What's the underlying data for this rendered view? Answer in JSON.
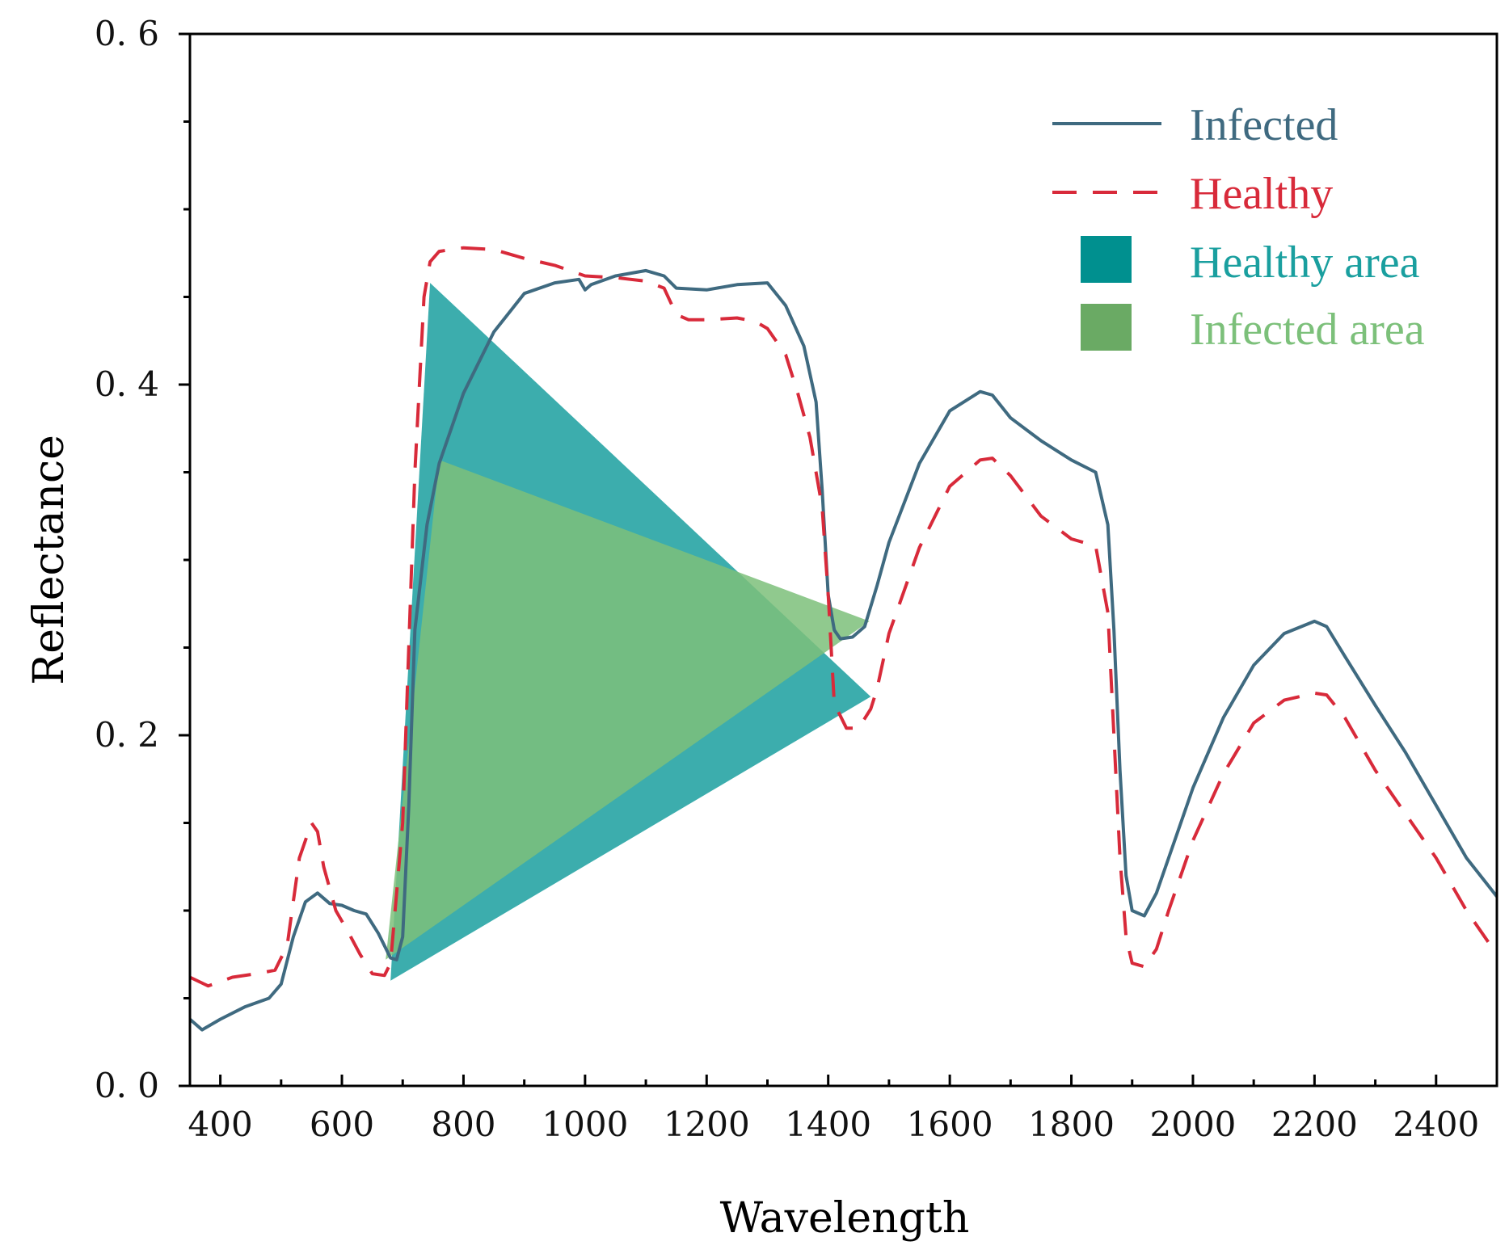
{
  "chart_data": {
    "type": "line",
    "title": "",
    "xlabel": "Wavelength",
    "ylabel": "Reflectance",
    "xlim": [
      350,
      2500
    ],
    "ylim": [
      0.0,
      0.6
    ],
    "grid": false,
    "legend_position": "top-right",
    "x_ticks": [
      400,
      600,
      800,
      1000,
      1200,
      1400,
      1600,
      1800,
      2000,
      2200,
      2400
    ],
    "x_tick_labels": [
      "400",
      "600",
      "800",
      "1000",
      "1200",
      "1400",
      "1600",
      "1800",
      "2000",
      "2200",
      "2400"
    ],
    "y_ticks": [
      0.0,
      0.2,
      0.4,
      0.6
    ],
    "y_tick_labels": [
      "0. 0",
      "0. 2",
      "0. 4",
      "0. 6"
    ],
    "colors": {
      "infected_line": "#3f6a80",
      "healthy_line": "#d82a3a",
      "healthy_area": "#1a9f9f",
      "infected_area": "#7cc07a",
      "legend_infected_text": "#3f6a80",
      "legend_healthy_text": "#d82a3a",
      "legend_healthy_area_text": "#1a9f9f",
      "legend_infected_area_text": "#7cc07a",
      "legend_healthy_area_swatch": "#00908f",
      "legend_infected_area_swatch": "#6aaa64"
    },
    "legend": [
      {
        "label": "Infected",
        "kind": "solid-line",
        "series": "infected"
      },
      {
        "label": "Healthy",
        "kind": "dashed-line",
        "series": "healthy"
      },
      {
        "label": "Healthy area",
        "kind": "swatch",
        "series": "healthy_area"
      },
      {
        "label": "Infected area",
        "kind": "swatch",
        "series": "infected_area"
      }
    ],
    "series": [
      {
        "name": "Infected",
        "style": "solid",
        "x": [
          350,
          370,
          400,
          440,
          480,
          500,
          520,
          540,
          560,
          580,
          600,
          620,
          640,
          660,
          680,
          690,
          700,
          710,
          720,
          740,
          760,
          800,
          850,
          900,
          950,
          990,
          1000,
          1010,
          1050,
          1100,
          1130,
          1150,
          1200,
          1250,
          1300,
          1330,
          1360,
          1380,
          1390,
          1400,
          1410,
          1420,
          1440,
          1460,
          1480,
          1500,
          1550,
          1600,
          1650,
          1670,
          1700,
          1750,
          1800,
          1840,
          1860,
          1870,
          1880,
          1890,
          1900,
          1920,
          1940,
          1960,
          2000,
          2050,
          2100,
          2150,
          2200,
          2220,
          2250,
          2300,
          2350,
          2400,
          2450,
          2500
        ],
        "values": [
          0.038,
          0.032,
          0.038,
          0.045,
          0.05,
          0.058,
          0.085,
          0.105,
          0.11,
          0.104,
          0.103,
          0.1,
          0.098,
          0.087,
          0.073,
          0.072,
          0.085,
          0.16,
          0.26,
          0.32,
          0.355,
          0.395,
          0.43,
          0.452,
          0.458,
          0.46,
          0.454,
          0.457,
          0.462,
          0.465,
          0.462,
          0.455,
          0.454,
          0.457,
          0.458,
          0.445,
          0.422,
          0.39,
          0.34,
          0.28,
          0.26,
          0.255,
          0.256,
          0.262,
          0.285,
          0.31,
          0.355,
          0.385,
          0.396,
          0.394,
          0.381,
          0.368,
          0.357,
          0.35,
          0.32,
          0.26,
          0.18,
          0.12,
          0.1,
          0.097,
          0.11,
          0.13,
          0.17,
          0.21,
          0.24,
          0.258,
          0.265,
          0.262,
          0.245,
          0.217,
          0.19,
          0.16,
          0.13,
          0.108
        ]
      },
      {
        "name": "Healthy",
        "style": "dashed",
        "x": [
          350,
          380,
          420,
          460,
          490,
          510,
          530,
          550,
          560,
          570,
          590,
          610,
          630,
          650,
          670,
          680,
          700,
          720,
          735,
          745,
          760,
          800,
          850,
          900,
          950,
          1000,
          1050,
          1100,
          1130,
          1150,
          1170,
          1200,
          1250,
          1280,
          1300,
          1330,
          1350,
          1370,
          1390,
          1400,
          1410,
          1430,
          1450,
          1470,
          1480,
          1500,
          1550,
          1600,
          1650,
          1670,
          1700,
          1750,
          1800,
          1840,
          1860,
          1870,
          1880,
          1890,
          1900,
          1920,
          1940,
          1960,
          2000,
          2050,
          2100,
          2150,
          2200,
          2220,
          2250,
          2300,
          2350,
          2400,
          2450,
          2500
        ],
        "values": [
          0.062,
          0.057,
          0.062,
          0.064,
          0.066,
          0.08,
          0.13,
          0.15,
          0.145,
          0.125,
          0.1,
          0.088,
          0.075,
          0.064,
          0.063,
          0.07,
          0.15,
          0.35,
          0.45,
          0.47,
          0.476,
          0.478,
          0.477,
          0.472,
          0.468,
          0.462,
          0.461,
          0.459,
          0.455,
          0.44,
          0.437,
          0.437,
          0.438,
          0.436,
          0.432,
          0.417,
          0.395,
          0.37,
          0.33,
          0.28,
          0.218,
          0.204,
          0.204,
          0.215,
          0.226,
          0.258,
          0.307,
          0.342,
          0.357,
          0.358,
          0.348,
          0.325,
          0.312,
          0.308,
          0.27,
          0.2,
          0.13,
          0.085,
          0.07,
          0.068,
          0.078,
          0.1,
          0.14,
          0.178,
          0.207,
          0.22,
          0.224,
          0.223,
          0.21,
          0.18,
          0.155,
          0.13,
          0.1,
          0.075
        ]
      }
    ],
    "areas": [
      {
        "name": "Healthy area",
        "polygon": [
          [
            680,
            0.06
          ],
          [
            745,
            0.458
          ],
          [
            1470,
            0.222
          ]
        ]
      },
      {
        "name": "Infected area",
        "polygon": [
          [
            672,
            0.072
          ],
          [
            760,
            0.357
          ],
          [
            1468,
            0.265
          ]
        ]
      }
    ]
  }
}
